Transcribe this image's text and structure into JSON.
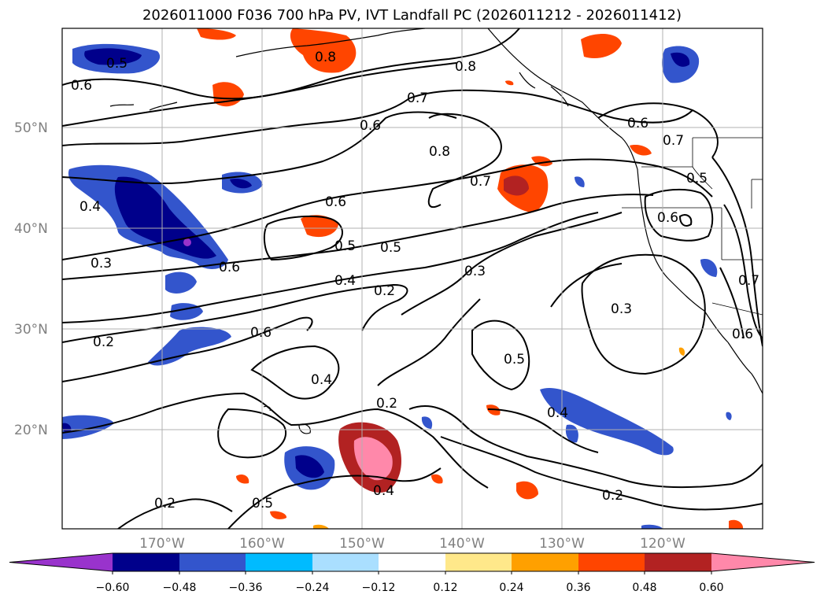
{
  "title": "2026011000 F036 700 hPa PV, IVT Landfall PC (2026011212 - 2026011412)",
  "lat_labels": [
    "50°N",
    "40°N",
    "30°N",
    "20°N"
  ],
  "lon_labels": [
    "170°W",
    "160°W",
    "150°W",
    "140°W",
    "130°W",
    "120°W"
  ],
  "contour_labels": [
    "0.5",
    "0.6",
    "0.8",
    "0.8",
    "0.7",
    "0.6",
    "0.8",
    "0.7",
    "0.6",
    "0.4",
    "0.6",
    "0.5",
    "0.5",
    "0.4",
    "0.2",
    "0.3",
    "0.3",
    "0.6",
    "0.2",
    "0.5",
    "0.4",
    "0.2",
    "0.4",
    "0.2",
    "0.5",
    "0.4",
    "0.3",
    "0.2",
    "0.6",
    "0.7",
    "0.5",
    "0.6",
    "0.7",
    "0.6"
  ],
  "colorbar": {
    "tick_labels": [
      "−0.60",
      "−0.48",
      "−0.36",
      "−0.24",
      "−0.12",
      "0.12",
      "0.24",
      "0.36",
      "0.48",
      "0.60"
    ],
    "colors": [
      "#9933cc",
      "#00008b",
      "#3355cc",
      "#00bbff",
      "#aadfff",
      "#ffffff",
      "#ffe88a",
      "#ffa000",
      "#ff4500",
      "#b22222",
      "#ff88aa"
    ]
  }
}
